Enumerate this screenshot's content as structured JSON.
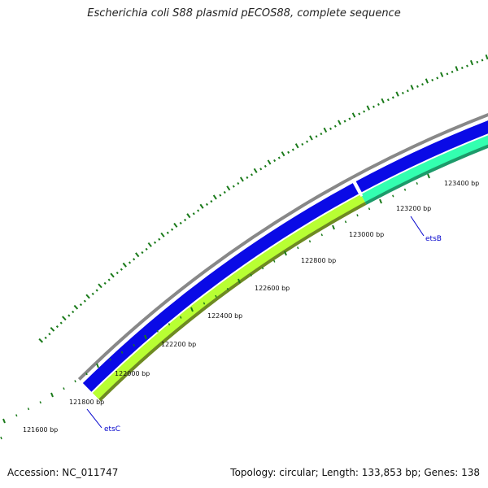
{
  "title": "Escherichia coli S88 plasmid pECOS88, complete sequence",
  "footer": {
    "accession": "Accession: NC_011747",
    "summary": "Topology: circular; Length: 133,853 bp; Genes: 138"
  },
  "colors": {
    "backbone": "#888888",
    "cds_forward": "#0a0ae6",
    "cds_reverse_light": "#b8ff33",
    "cds_reverse_dark": "#6e8a22",
    "cds_teal": "#33ffb0",
    "ticks": "#1a7a1a",
    "gc_marks": "#1a7a1a",
    "gene_label": "#0000cc"
  },
  "ruler": {
    "labels": [
      "121600 bp",
      "121800 bp",
      "122000 bp",
      "122200 bp",
      "122400 bp",
      "122600 bp",
      "122800 bp",
      "123000 bp",
      "123200 bp",
      "123400 bp"
    ]
  },
  "genes": [
    {
      "name": "etsC"
    },
    {
      "name": "etsB"
    }
  ]
}
